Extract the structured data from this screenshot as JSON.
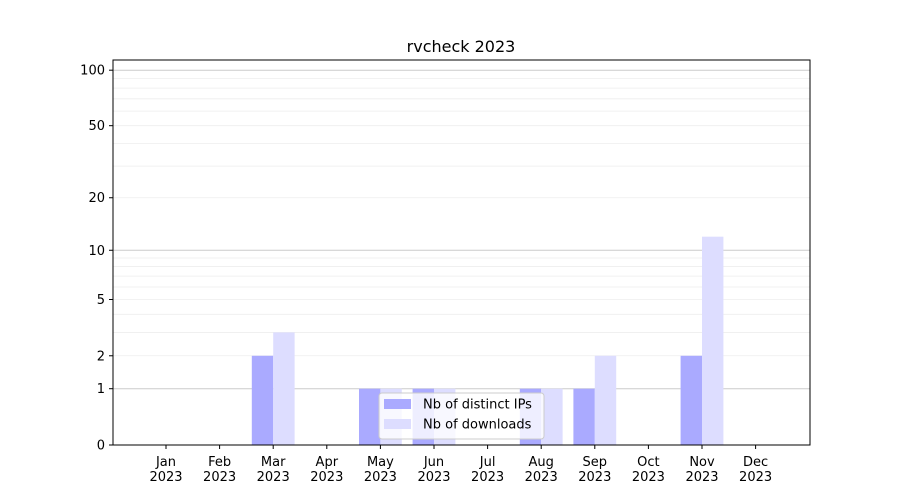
{
  "chart_data": {
    "type": "bar",
    "title": "rvcheck 2023",
    "xlabel": "",
    "ylabel": "",
    "yscale": "log(1+y)",
    "ylim": [
      0,
      100
    ],
    "yticks": [
      0,
      1,
      2,
      5,
      10,
      20,
      50,
      100
    ],
    "grid": true,
    "legend_position": "bottom-center",
    "categories": [
      "Jan\n2023",
      "Feb\n2023",
      "Mar\n2023",
      "Apr\n2023",
      "May\n2023",
      "Jun\n2023",
      "Jul\n2023",
      "Aug\n2023",
      "Sep\n2023",
      "Oct\n2023",
      "Nov\n2023",
      "Dec\n2023"
    ],
    "series": [
      {
        "name": "Nb of distinct IPs",
        "color": "#aaaaff",
        "values": [
          0,
          0,
          2,
          0,
          1,
          1,
          0,
          1,
          1,
          0,
          2,
          0
        ]
      },
      {
        "name": "Nb of downloads",
        "color": "#ddddff",
        "values": [
          0,
          0,
          3,
          0,
          1,
          1,
          0,
          1,
          2,
          0,
          12,
          0
        ]
      }
    ]
  }
}
